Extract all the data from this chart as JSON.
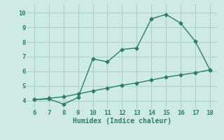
{
  "xlabel": "Humidex (Indice chaleur)",
  "x": [
    6,
    7,
    8,
    9,
    10,
    11,
    12,
    13,
    14,
    15,
    16,
    17,
    18
  ],
  "y_curve": [
    4.05,
    4.1,
    3.75,
    4.2,
    6.85,
    6.65,
    7.5,
    7.6,
    9.6,
    9.9,
    9.3,
    8.05,
    6.1
  ],
  "y_line": [
    4.05,
    4.15,
    4.25,
    4.45,
    4.65,
    4.85,
    5.05,
    5.2,
    5.4,
    5.6,
    5.75,
    5.9,
    6.1
  ],
  "xlim": [
    5.5,
    18.5
  ],
  "ylim": [
    3.4,
    10.6
  ],
  "yticks": [
    4,
    5,
    6,
    7,
    8,
    9,
    10
  ],
  "xticks": [
    6,
    7,
    8,
    9,
    10,
    11,
    12,
    13,
    14,
    15,
    16,
    17,
    18
  ],
  "line_color": "#2d7d6e",
  "bg_color": "#ceeae4",
  "grid_color": "#aacfc8"
}
